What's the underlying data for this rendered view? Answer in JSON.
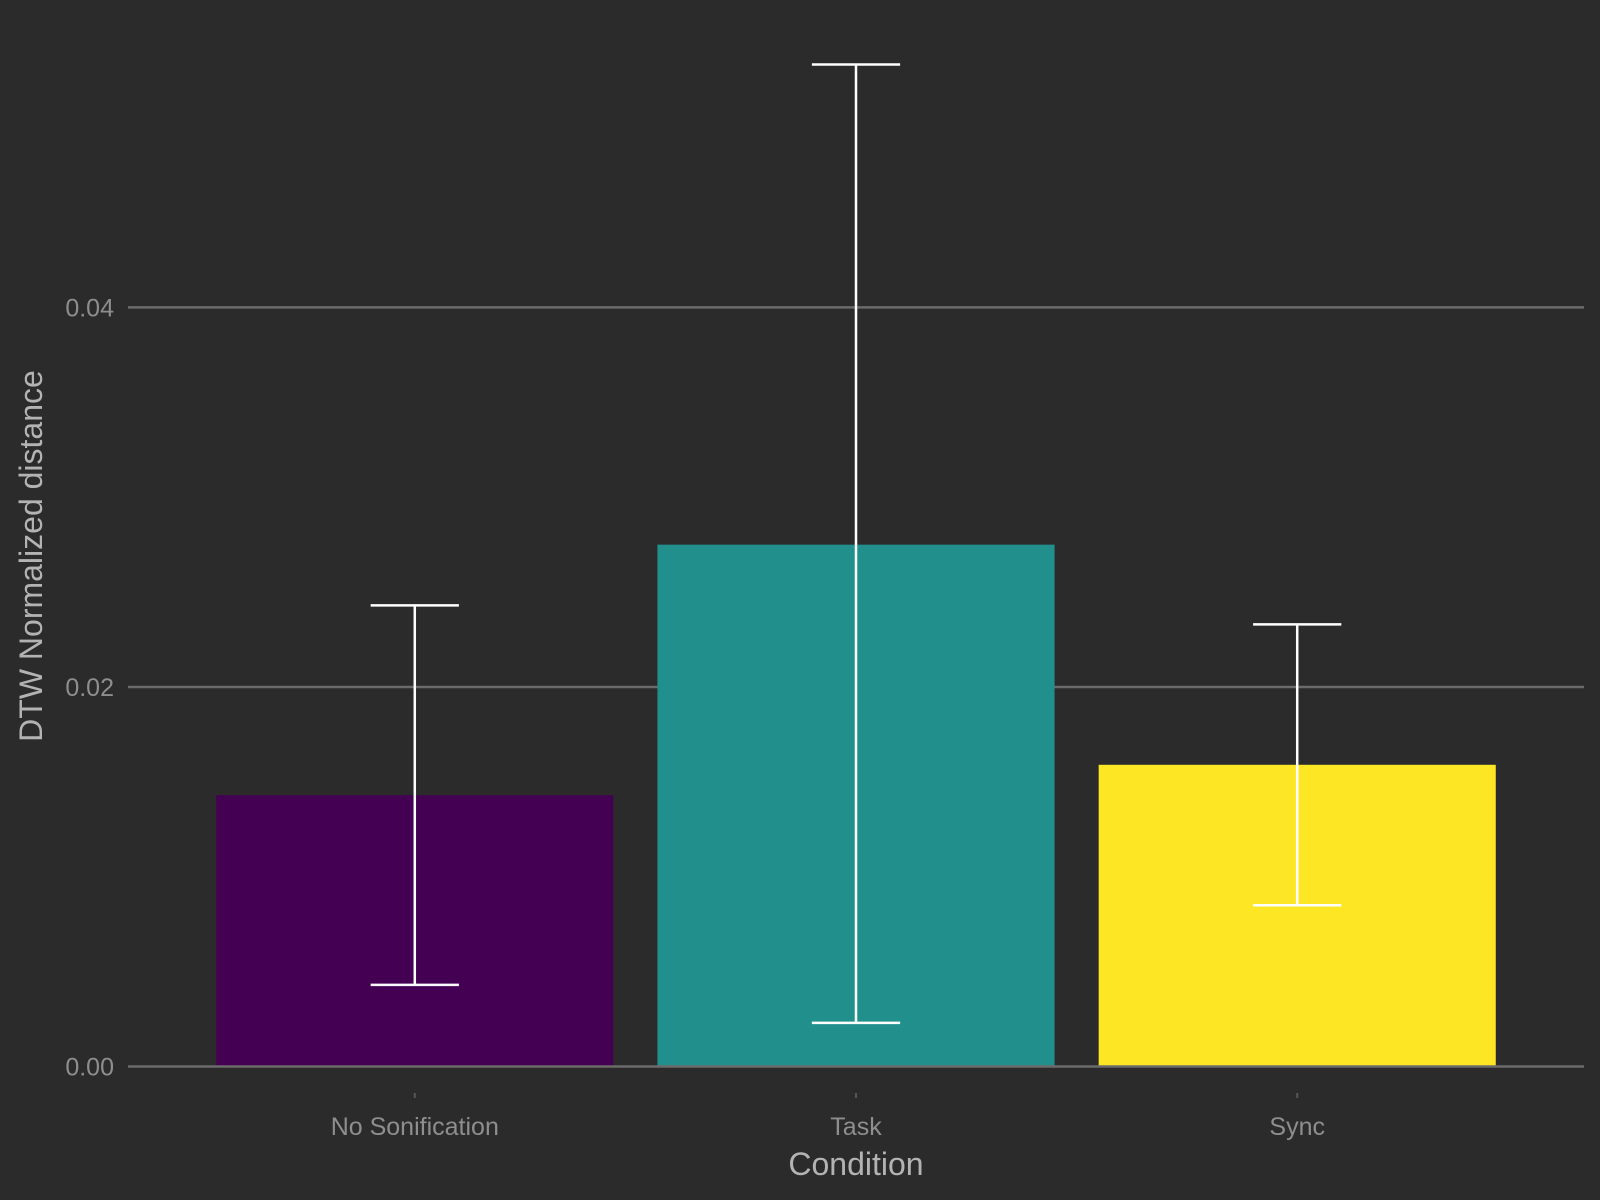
{
  "chart_data": {
    "type": "bar",
    "categories": [
      "No Sonification",
      "Task",
      "Sync"
    ],
    "values": [
      0.0143,
      0.0275,
      0.0159
    ],
    "error_low": [
      0.0043,
      0.0023,
      0.0085
    ],
    "error_high": [
      0.0243,
      0.0528,
      0.0233
    ],
    "colors": [
      "#440154",
      "#21908c",
      "#fde725"
    ],
    "xlabel": "Condition",
    "ylabel": "DTW Normalized distance",
    "ylim": [
      -0.0015,
      0.0562
    ],
    "yticks": [
      0.0,
      0.02,
      0.04
    ],
    "ytick_labels": [
      "0.00",
      "0.02",
      "0.04"
    ],
    "grid": true,
    "legend": "none",
    "background": "#2b2b2b"
  }
}
